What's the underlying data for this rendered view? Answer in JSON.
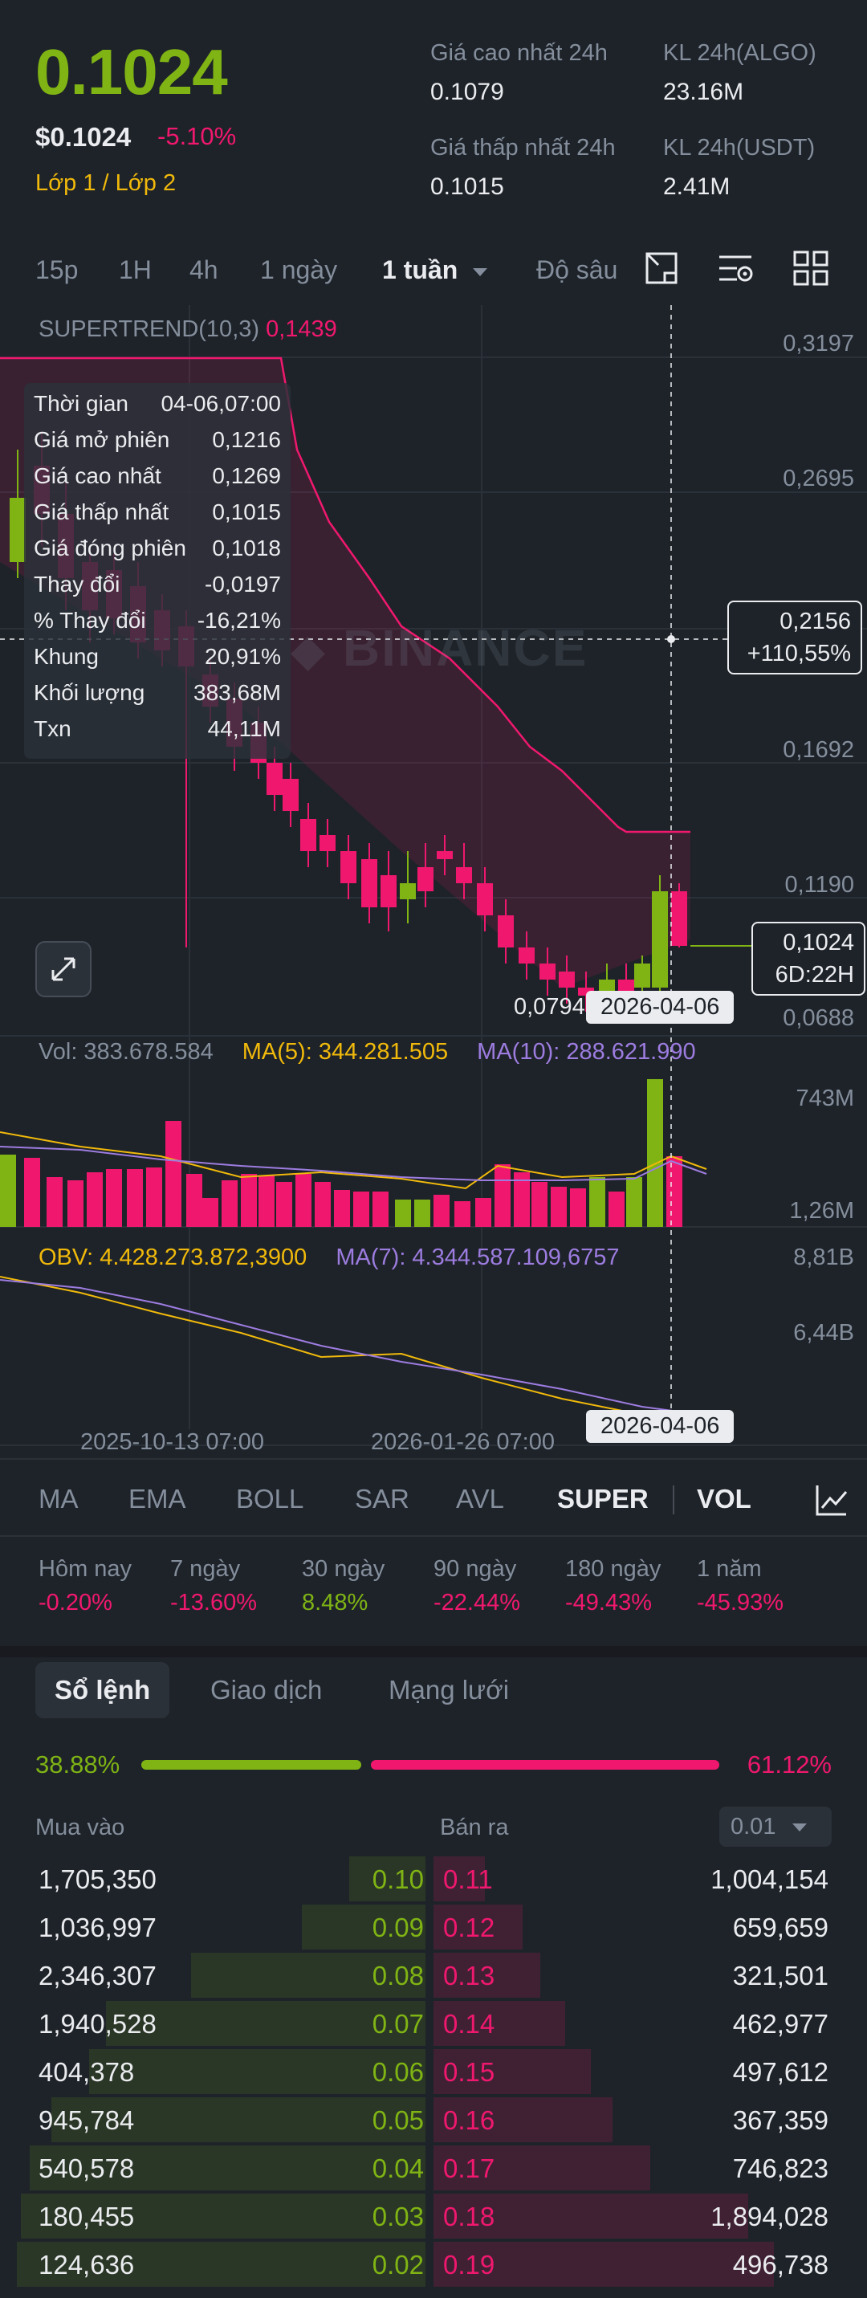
{
  "header": {
    "price": "0.1024",
    "price_usd": "$0.1024",
    "change_pct": "-5.10%",
    "layer_link": "Lớp 1 / Lớp 2",
    "stats": [
      {
        "label": "Giá cao nhất 24h",
        "value": "0.1079"
      },
      {
        "label": "KL 24h(ALGO)",
        "value": "23.16M"
      },
      {
        "label": "Giá thấp nhất 24h",
        "value": "0.1015"
      },
      {
        "label": "KL 24h(USDT)",
        "value": "2.41M"
      }
    ]
  },
  "timeframes": [
    "15p",
    "1H",
    "4h",
    "1 ngày",
    "1 tuần",
    "Độ sâu"
  ],
  "active_timeframe": "1 tuần",
  "tool_icons": [
    "chart-expand-icon",
    "chart-settings-icon",
    "grid-layout-icon"
  ],
  "chart": {
    "indicator_label": "SUPERTREND(10,3)",
    "indicator_value": "0,1439",
    "watermark": "BINANCE",
    "y_axis": [
      "0,3197",
      "0,2695",
      "0,1692",
      "0,1190",
      "0,0688"
    ],
    "crosshair_price": "0,2156",
    "crosshair_change": "+110,55%",
    "last_price": "0,1024",
    "countdown": "6D:22H",
    "low_label": "0,0794",
    "crosshair_date": "2026-04-06",
    "tooltip": [
      {
        "k": "Thời gian",
        "v": "04-06,07:00"
      },
      {
        "k": "Giá mở phiên",
        "v": "0,1216"
      },
      {
        "k": "Giá cao nhất",
        "v": "0,1269"
      },
      {
        "k": "Giá thấp nhất",
        "v": "0,1015"
      },
      {
        "k": "Giá đóng phiên",
        "v": "0,1018"
      },
      {
        "k": "Thay đổi",
        "v": "-0,0197"
      },
      {
        "k": "% Thay đổi",
        "v": "-16,21%"
      },
      {
        "k": "Khung",
        "v": "20,91%"
      },
      {
        "k": "Khối lượng",
        "v": "383,68M"
      },
      {
        "k": "Txn",
        "v": "44,11M"
      }
    ],
    "volume": {
      "vol_label": "Vol: 383.678.584",
      "ma5_label": "MA(5): 344.281.505",
      "ma10_label": "MA(10): 288.621.990",
      "y_top": "743M",
      "y_bottom": "1,26M"
    },
    "obv": {
      "obv_label": "OBV: 4.428.273.872,3900",
      "ma7_label": "MA(7): 4.344.587.109,6757",
      "y_top": "8,81B",
      "y_mid": "6,44B"
    },
    "x_axis": [
      "2025-10-13 07:00",
      "2026-01-26 07:00"
    ],
    "colors": {
      "up": "#7fb414",
      "down": "#f0186e",
      "supertrend": "#f0186e",
      "ma5": "#f0b90b",
      "ma10": "#9d7ce0"
    }
  },
  "indicator_tabs": [
    "MA",
    "EMA",
    "BOLL",
    "SAR",
    "AVL",
    "SUPER",
    "VOL"
  ],
  "active_indicator_tabs": [
    "SUPER",
    "VOL"
  ],
  "performance": [
    {
      "label": "Hôm nay",
      "value": "-0.20%",
      "dir": "down"
    },
    {
      "label": "7 ngày",
      "value": "-13.60%",
      "dir": "down"
    },
    {
      "label": "30 ngày",
      "value": "8.48%",
      "dir": "up"
    },
    {
      "label": "90 ngày",
      "value": "-22.44%",
      "dir": "down"
    },
    {
      "label": "180 ngày",
      "value": "-49.43%",
      "dir": "down"
    },
    {
      "label": "1 năm",
      "value": "-45.93%",
      "dir": "down"
    }
  ],
  "orderbook": {
    "tabs": [
      "Sổ lệnh",
      "Giao dịch",
      "Mạng lưới"
    ],
    "active_tab": "Sổ lệnh",
    "buy_pct": "38.88%",
    "sell_pct": "61.12%",
    "buy_ratio": 0.3888,
    "buy_header": "Mua vào",
    "sell_header": "Bán ra",
    "precision": "0.01",
    "rows": [
      {
        "bid_qty": "1,705,350",
        "bid_price": "0.10",
        "ask_price": "0.11",
        "ask_qty": "1,004,154",
        "bid_depth": 0.18,
        "ask_depth": 0.12
      },
      {
        "bid_qty": "1,036,997",
        "bid_price": "0.09",
        "ask_price": "0.12",
        "ask_qty": "659,659",
        "bid_depth": 0.29,
        "ask_depth": 0.21
      },
      {
        "bid_qty": "2,346,307",
        "bid_price": "0.08",
        "ask_price": "0.13",
        "ask_qty": "321,501",
        "bid_depth": 0.55,
        "ask_depth": 0.25
      },
      {
        "bid_qty": "1,940,528",
        "bid_price": "0.07",
        "ask_price": "0.14",
        "ask_qty": "462,977",
        "bid_depth": 0.75,
        "ask_depth": 0.31
      },
      {
        "bid_qty": "404,378",
        "bid_price": "0.06",
        "ask_price": "0.15",
        "ask_qty": "497,612",
        "bid_depth": 0.79,
        "ask_depth": 0.37
      },
      {
        "bid_qty": "945,784",
        "bid_price": "0.05",
        "ask_price": "0.16",
        "ask_qty": "367,359",
        "bid_depth": 0.88,
        "ask_depth": 0.42
      },
      {
        "bid_qty": "540,578",
        "bid_price": "0.04",
        "ask_price": "0.17",
        "ask_qty": "746,823",
        "bid_depth": 0.93,
        "ask_depth": 0.51
      },
      {
        "bid_qty": "180,455",
        "bid_price": "0.03",
        "ask_price": "0.18",
        "ask_qty": "1,894,028",
        "bid_depth": 0.95,
        "ask_depth": 0.74
      },
      {
        "bid_qty": "124,636",
        "bid_price": "0.02",
        "ask_price": "0.19",
        "ask_qty": "496,738",
        "bid_depth": 0.96,
        "ask_depth": 0.8
      }
    ]
  }
}
